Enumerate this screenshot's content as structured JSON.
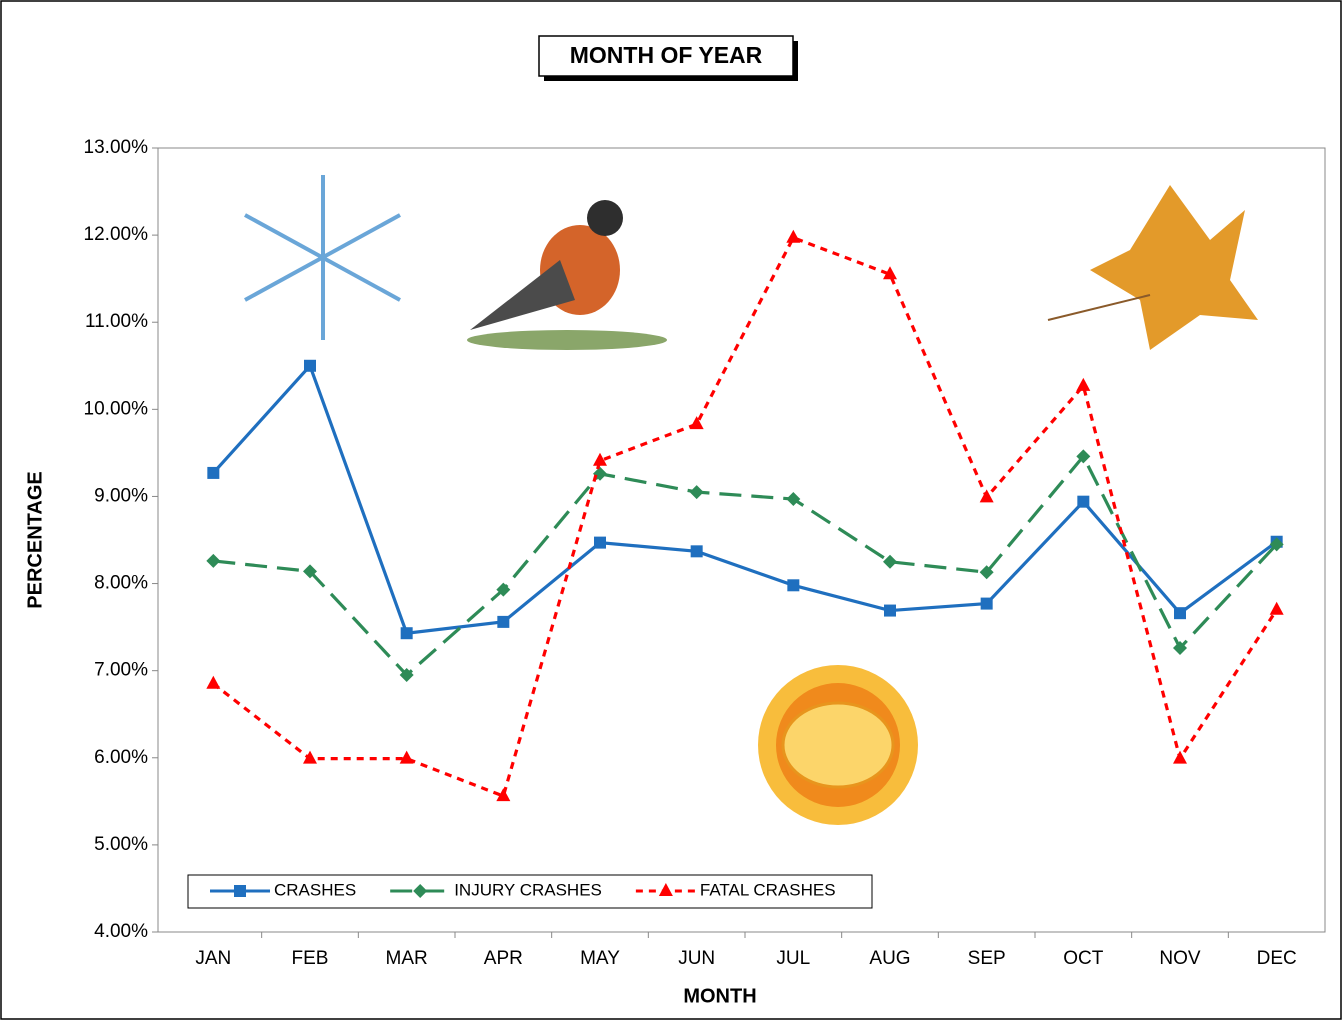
{
  "chart_data": {
    "type": "line",
    "title": "MONTH OF YEAR",
    "x_label": "MONTH",
    "y_label": "PERCENTAGE",
    "categories": [
      "JAN",
      "FEB",
      "MAR",
      "APR",
      "MAY",
      "JUN",
      "JUL",
      "AUG",
      "SEP",
      "OCT",
      "NOV",
      "DEC"
    ],
    "series": [
      {
        "name": "CRASHES",
        "color": "#1f6fbf",
        "marker": "square",
        "dash": "solid",
        "values": [
          9.27,
          10.5,
          7.43,
          7.56,
          8.47,
          8.37,
          7.98,
          7.69,
          7.77,
          8.94,
          7.66,
          8.48
        ]
      },
      {
        "name": "INJURY CRASHES",
        "color": "#2e8b57",
        "marker": "diamond",
        "dash": "long",
        "values": [
          8.26,
          8.14,
          6.95,
          7.93,
          9.26,
          9.05,
          8.97,
          8.25,
          8.13,
          9.46,
          7.26,
          8.45
        ]
      },
      {
        "name": "FATAL CRASHES",
        "color": "#ff0000",
        "marker": "triangle",
        "dash": "short",
        "values": [
          6.85,
          5.99,
          5.99,
          5.56,
          9.41,
          9.83,
          11.97,
          11.55,
          8.99,
          10.27,
          5.99,
          7.7
        ]
      }
    ],
    "ylim": [
      4,
      13
    ],
    "yticks": [
      {
        "value": 4,
        "label": "4.00%"
      },
      {
        "value": 5,
        "label": "5.00%"
      },
      {
        "value": 6,
        "label": "6.00%"
      },
      {
        "value": 7,
        "label": "7.00%"
      },
      {
        "value": 8,
        "label": "8.00%"
      },
      {
        "value": 9,
        "label": "9.00%"
      },
      {
        "value": 10,
        "label": "10.00%"
      },
      {
        "value": 11,
        "label": "11.00%"
      },
      {
        "value": 12,
        "label": "12.00%"
      },
      {
        "value": 13,
        "label": "13.00%"
      }
    ],
    "grid": false,
    "legend": "bottom-left"
  }
}
